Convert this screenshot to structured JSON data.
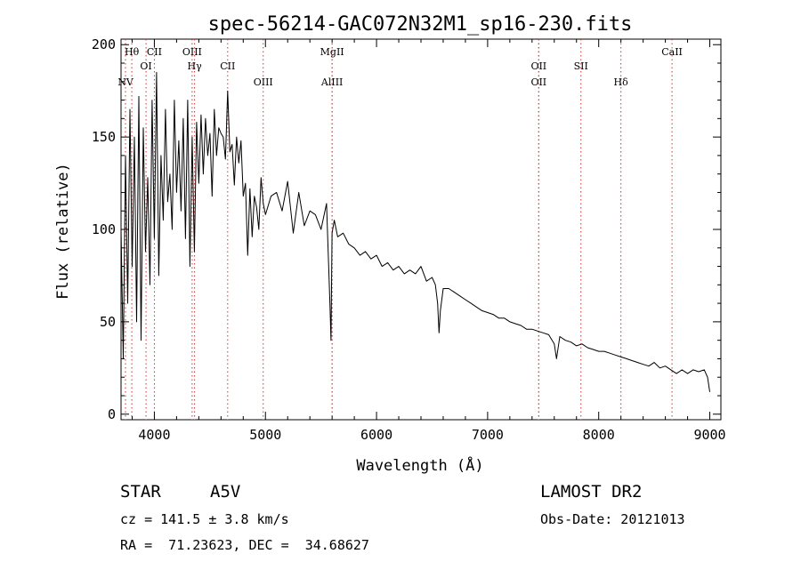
{
  "chart_data": {
    "type": "line",
    "title": "spec-56214-GAC072N32M1_sp16-230.fits",
    "xlabel": "Wavelength (Å)",
    "ylabel": "Flux (relative)",
    "xlim": [
      3700,
      9100
    ],
    "ylim": [
      -3,
      203
    ],
    "x_ticks": [
      4000,
      5000,
      6000,
      7000,
      8000,
      9000
    ],
    "y_ticks": [
      0,
      50,
      100,
      150,
      200
    ],
    "grid": false,
    "line_color": "#000000",
    "marker_color": "#cc3333",
    "line_markers": [
      {
        "label": "NV",
        "x": 3740,
        "row": 3,
        "style": "dotted"
      },
      {
        "label": "Hθ",
        "x": 3797,
        "row": 1,
        "style": "dotted"
      },
      {
        "label": "OI",
        "x": 3925,
        "row": 2,
        "style": "dotted"
      },
      {
        "label": "CII",
        "x": 4000,
        "row": 1,
        "style": "dotted"
      },
      {
        "label": "OIII",
        "x": 4340,
        "row": 1,
        "style": "dotted"
      },
      {
        "label": "Hγ",
        "x": 4362,
        "row": 2,
        "style": "dotted"
      },
      {
        "label": "CII",
        "x": 4660,
        "row": 2,
        "style": "dotted"
      },
      {
        "label": "OIII",
        "x": 4980,
        "row": 3,
        "style": "dotted"
      },
      {
        "label": "MgII",
        "x": 5600,
        "row": 1,
        "style": "dotted"
      },
      {
        "label": "AlIII",
        "x": 5600,
        "row": 3,
        "style": "dotted"
      },
      {
        "label": "OII",
        "x": 7460,
        "row": 2,
        "style": "dotted"
      },
      {
        "label": "OII",
        "x": 7460,
        "row": 3,
        "style": "dotted"
      },
      {
        "label": "SII",
        "x": 7840,
        "row": 2,
        "style": "dotted"
      },
      {
        "label": "Hδ",
        "x": 8200,
        "row": 3,
        "style": "dotted"
      },
      {
        "label": "CaII",
        "x": 8660,
        "row": 1,
        "style": "dotted"
      }
    ],
    "series": [
      {
        "x": [
          3700,
          3720,
          3740,
          3760,
          3780,
          3800,
          3820,
          3840,
          3860,
          3880,
          3900,
          3920,
          3940,
          3960,
          3980,
          4000,
          4020,
          4040,
          4060,
          4080,
          4100,
          4120,
          4140,
          4160,
          4180,
          4200,
          4220,
          4240,
          4260,
          4280,
          4300,
          4320,
          4340,
          4360,
          4380,
          4400,
          4420,
          4440,
          4460,
          4480,
          4500,
          4520,
          4540,
          4560,
          4580,
          4600,
          4620,
          4640,
          4660,
          4680,
          4700,
          4720,
          4740,
          4760,
          4780,
          4800,
          4820,
          4840,
          4860,
          4880,
          4900,
          4920,
          4940,
          4960,
          4980,
          5000,
          5050,
          5100,
          5150,
          5200,
          5250,
          5300,
          5350,
          5400,
          5450,
          5500,
          5550,
          5580,
          5590,
          5600,
          5620,
          5650,
          5700,
          5750,
          5800,
          5850,
          5900,
          5950,
          6000,
          6050,
          6100,
          6150,
          6200,
          6250,
          6300,
          6350,
          6400,
          6450,
          6500,
          6530,
          6550,
          6563,
          6575,
          6600,
          6650,
          6700,
          6750,
          6800,
          6850,
          6900,
          6950,
          7000,
          7050,
          7100,
          7150,
          7200,
          7250,
          7300,
          7350,
          7400,
          7450,
          7500,
          7550,
          7600,
          7620,
          7650,
          7700,
          7750,
          7800,
          7850,
          7900,
          7950,
          8000,
          8050,
          8100,
          8150,
          8200,
          8250,
          8300,
          8350,
          8400,
          8450,
          8500,
          8550,
          8600,
          8650,
          8700,
          8750,
          8800,
          8850,
          8900,
          8950,
          8980,
          9000
        ],
        "y": [
          100,
          30,
          140,
          60,
          165,
          80,
          150,
          50,
          172,
          40,
          155,
          88,
          128,
          70,
          170,
          95,
          185,
          75,
          140,
          105,
          165,
          115,
          130,
          100,
          170,
          120,
          148,
          110,
          160,
          95,
          170,
          80,
          150,
          88,
          158,
          125,
          162,
          130,
          160,
          140,
          152,
          118,
          165,
          140,
          155,
          152,
          150,
          138,
          175,
          142,
          146,
          124,
          150,
          136,
          148,
          118,
          125,
          86,
          122,
          96,
          118,
          112,
          100,
          128,
          114,
          108,
          118,
          120,
          110,
          126,
          98,
          120,
          102,
          110,
          108,
          100,
          114,
          60,
          40,
          98,
          105,
          96,
          98,
          92,
          90,
          86,
          88,
          84,
          86,
          80,
          82,
          78,
          80,
          76,
          78,
          76,
          80,
          72,
          74,
          70,
          60,
          44,
          56,
          68,
          68,
          66,
          64,
          62,
          60,
          58,
          56,
          55,
          54,
          52,
          52,
          50,
          49,
          48,
          46,
          46,
          45,
          44,
          43,
          38,
          30,
          42,
          40,
          39,
          37,
          38,
          36,
          35,
          34,
          34,
          33,
          32,
          31,
          30,
          29,
          28,
          27,
          26,
          28,
          25,
          26,
          24,
          22,
          24,
          22,
          24,
          23,
          24,
          20,
          12
        ]
      }
    ]
  },
  "info": {
    "object_type": "STAR",
    "subclass": "A5V",
    "survey": "LAMOST DR2",
    "cz_line": "cz = 141.5 ± 3.8 km/s",
    "obs_date_line": "Obs-Date: 20121013",
    "coord_line": "RA =  71.23623, DEC =  34.68627"
  }
}
